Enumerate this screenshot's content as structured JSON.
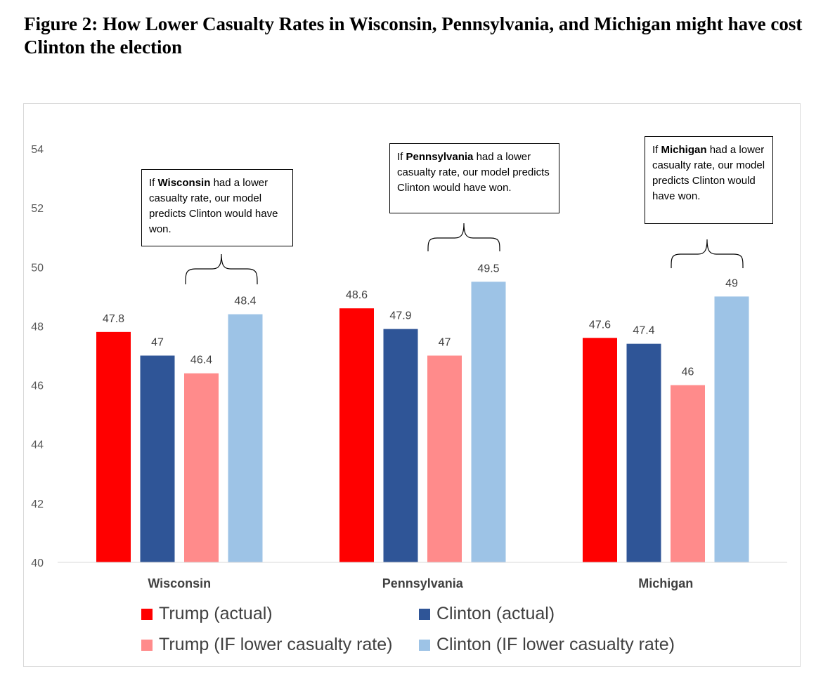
{
  "title": "Figure 2: How Lower Casualty Rates in Wisconsin, Pennsylvania, and Michigan might have cost Clinton the election",
  "colors": {
    "trump_actual": "#ff0000",
    "clinton_actual": "#2f5597",
    "trump_if": "#ff8b8b",
    "clinton_if": "#9dc3e6"
  },
  "callouts": [
    {
      "prefix": "If ",
      "state": "Wisconsin",
      "suffix": " had a lower casualty rate, our model predicts Clinton would have won."
    },
    {
      "prefix": "If ",
      "state": "Pennsylvania",
      "suffix": " had a lower casualty rate, our model predicts Clinton would have won."
    },
    {
      "prefix": "If ",
      "state": "Michigan",
      "suffix": " had a lower casualty rate, our model predicts Clinton would have won."
    }
  ],
  "chart_data": {
    "type": "bar",
    "title": "Figure 2: How Lower Casualty Rates in Wisconsin, Pennsylvania, and Michigan might have cost Clinton the election",
    "categories": [
      "Wisconsin",
      "Pennsylvania",
      "Michigan"
    ],
    "series": [
      {
        "name": "Trump (actual)",
        "values": [
          47.8,
          48.6,
          47.6
        ],
        "labels": [
          "47.8",
          "48.6",
          "47.6"
        ]
      },
      {
        "name": "Clinton (actual)",
        "values": [
          47,
          47.9,
          47.4
        ],
        "labels": [
          "47",
          "47.9",
          "47.4"
        ]
      },
      {
        "name": "Trump (IF lower casualty rate)",
        "values": [
          46.4,
          47,
          46
        ],
        "labels": [
          "46.4",
          "47",
          "46"
        ]
      },
      {
        "name": "Clinton (IF lower casualty rate)",
        "values": [
          48.4,
          49.5,
          49
        ],
        "labels": [
          "48.4",
          "49.5",
          "49"
        ]
      }
    ],
    "ylim": [
      40,
      54
    ],
    "yticks": [
      "40",
      "42",
      "44",
      "46",
      "48",
      "50",
      "52",
      "54"
    ],
    "xlabel": "",
    "ylabel": "",
    "grid": false,
    "legend_position": "bottom"
  }
}
